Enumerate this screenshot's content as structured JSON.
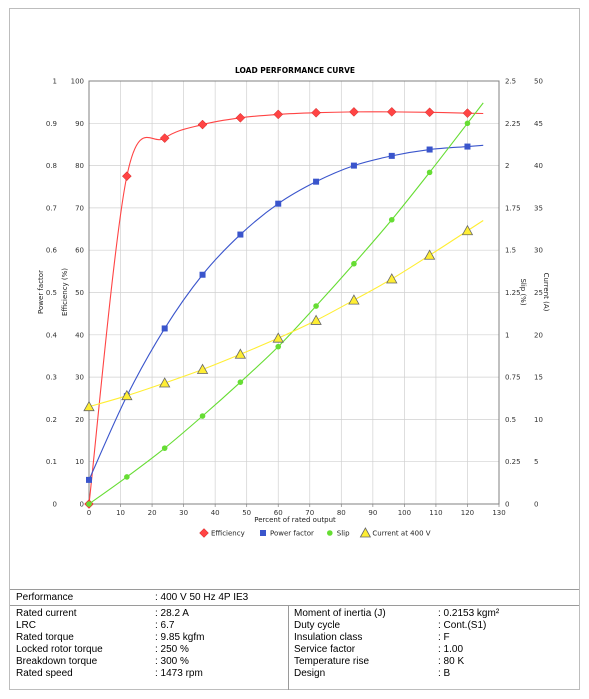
{
  "chart_data": {
    "type": "line",
    "title": "LOAD PERFORMANCE CURVE",
    "xlabel": "Percent of rated output",
    "x_ticks": [
      "0",
      "10",
      "20",
      "30",
      "40",
      "50",
      "60",
      "70",
      "80",
      "90",
      "100",
      "110",
      "120",
      "130"
    ],
    "xlim": [
      0,
      130
    ],
    "axes": {
      "power_factor": {
        "label": "Power factor",
        "ticks": [
          "0",
          "0.1",
          "0.2",
          "0.3",
          "0.4",
          "0.5",
          "0.6",
          "0.7",
          "0.8",
          "0.9",
          "1"
        ]
      },
      "efficiency": {
        "label": "Efficiency (%)",
        "ticks": [
          "0",
          "10",
          "20",
          "30",
          "40",
          "50",
          "60",
          "70",
          "80",
          "90",
          "100"
        ]
      },
      "slip": {
        "label": "Slip (%)",
        "ticks": [
          "0",
          "0.25",
          "0.5",
          "0.75",
          "1",
          "1.25",
          "1.5",
          "1.75",
          "2",
          "2.25",
          "2.5"
        ]
      },
      "current": {
        "label": "Current (A)",
        "ticks": [
          "0",
          "5",
          "10",
          "15",
          "20",
          "25",
          "30",
          "35",
          "40",
          "45",
          "50"
        ]
      }
    },
    "grid": true,
    "legend_position": "bottom",
    "series": [
      {
        "name": "Efficiency",
        "color": "#ff4444",
        "marker": "diamond",
        "axis": "efficiency",
        "x": [
          0,
          12,
          24,
          36,
          48,
          60,
          72,
          84,
          96,
          108,
          120
        ],
        "y": [
          0,
          77.5,
          86.5,
          89.7,
          91.3,
          92.1,
          92.5,
          92.7,
          92.7,
          92.6,
          92.4
        ]
      },
      {
        "name": "Power factor",
        "color": "#3a55cc",
        "marker": "square",
        "axis": "power_factor",
        "x": [
          0,
          12,
          24,
          36,
          48,
          60,
          72,
          84,
          96,
          108,
          120
        ],
        "y": [
          0.057,
          0.255,
          0.415,
          0.542,
          0.637,
          0.71,
          0.762,
          0.8,
          0.823,
          0.838,
          0.845
        ]
      },
      {
        "name": "Slip",
        "color": "#66dd33",
        "marker": "circle",
        "axis": "slip",
        "x": [
          0,
          12,
          24,
          36,
          48,
          60,
          72,
          84,
          96,
          108,
          120
        ],
        "y": [
          0,
          0.16,
          0.33,
          0.52,
          0.72,
          0.93,
          1.17,
          1.42,
          1.68,
          1.96,
          2.25
        ]
      },
      {
        "name": "Current at 400 V",
        "color": "#ffee33",
        "marker": "triangle",
        "axis": "current",
        "x": [
          0,
          12,
          24,
          36,
          48,
          60,
          72,
          84,
          96,
          108,
          120
        ],
        "y": [
          11.5,
          12.8,
          14.3,
          15.9,
          17.7,
          19.6,
          21.7,
          24.1,
          26.6,
          29.4,
          32.3
        ]
      }
    ]
  },
  "specs": {
    "performance_label": "Performance",
    "performance_value": ": 400 V 50 Hz 4P IE3",
    "left": [
      {
        "label": "Rated current",
        "value": ": 28.2 A"
      },
      {
        "label": "LRC",
        "value": ": 6.7"
      },
      {
        "label": "Rated torque",
        "value": ": 9.85 kgfm"
      },
      {
        "label": "Locked rotor torque",
        "value": ": 250 %"
      },
      {
        "label": "Breakdown torque",
        "value": ": 300 %"
      },
      {
        "label": "Rated speed",
        "value": ": 1473 rpm"
      }
    ],
    "right": [
      {
        "label": "Moment of inertia (J)",
        "value": ": 0.2153 kgm²"
      },
      {
        "label": "Duty cycle",
        "value": ": Cont.(S1)"
      },
      {
        "label": "Insulation class",
        "value": ": F"
      },
      {
        "label": "Service factor",
        "value": ": 1.00"
      },
      {
        "label": "Temperature rise",
        "value": ": 80 K"
      },
      {
        "label": "Design",
        "value": ": B"
      }
    ]
  }
}
